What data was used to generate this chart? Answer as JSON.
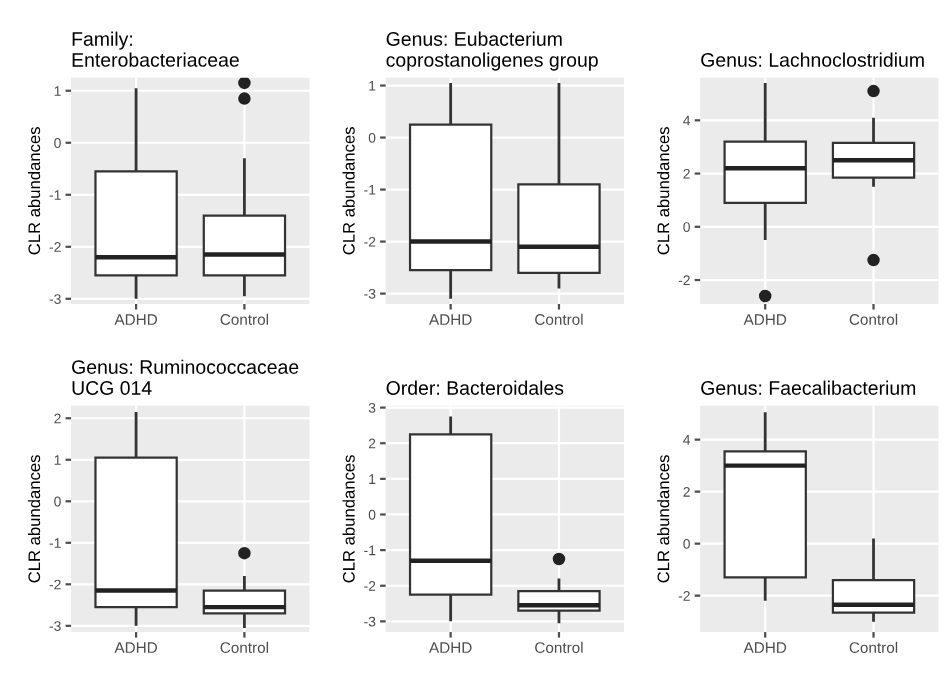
{
  "chart_data": [
    {
      "type": "box",
      "title": "Family:\nEnterobacteriaceae",
      "ylabel": "CLR abundances",
      "categories": [
        "ADHD",
        "Control"
      ],
      "ylim": [
        -3.1,
        1.25
      ],
      "yticks": [
        -3,
        -2,
        -1,
        0,
        1
      ],
      "grid": true,
      "legend": false,
      "boxes": [
        {
          "low": -3.0,
          "q1": -2.55,
          "median": -2.2,
          "q3": -0.55,
          "high": 1.05
        },
        {
          "low": -2.95,
          "q1": -2.55,
          "median": -2.15,
          "q3": -1.4,
          "high": -0.3,
          "outliers": [
            0.85,
            1.15
          ]
        }
      ]
    },
    {
      "type": "box",
      "title": "Genus: Eubacterium\ncoprostanoligenes group",
      "ylabel": "CLR abundances",
      "categories": [
        "ADHD",
        "Control"
      ],
      "ylim": [
        -3.2,
        1.15
      ],
      "yticks": [
        -3,
        -2,
        -1,
        0,
        1
      ],
      "grid": true,
      "legend": false,
      "boxes": [
        {
          "low": -3.1,
          "q1": -2.55,
          "median": -2.0,
          "q3": 0.25,
          "high": 1.05
        },
        {
          "low": -2.9,
          "q1": -2.6,
          "median": -2.1,
          "q3": -0.9,
          "high": 1.05
        }
      ]
    },
    {
      "type": "box",
      "title": "Genus: Lachnoclostridium",
      "ylabel": "CLR abundances",
      "categories": [
        "ADHD",
        "Control"
      ],
      "ylim": [
        -2.9,
        5.6
      ],
      "yticks": [
        -2,
        0,
        2,
        4
      ],
      "grid": true,
      "legend": false,
      "boxes": [
        {
          "low": -0.5,
          "q1": 0.9,
          "median": 2.2,
          "q3": 3.2,
          "high": 5.4,
          "outliers": [
            -2.6
          ]
        },
        {
          "low": 1.5,
          "q1": 1.85,
          "median": 2.5,
          "q3": 3.15,
          "high": 4.1,
          "outliers": [
            5.1,
            -1.25
          ]
        }
      ]
    },
    {
      "type": "box",
      "title": "Genus: Ruminococcaceae\nUCG 014",
      "ylabel": "CLR abundances",
      "categories": [
        "ADHD",
        "Control"
      ],
      "ylim": [
        -3.15,
        2.3
      ],
      "yticks": [
        -3,
        -2,
        -1,
        0,
        1,
        2
      ],
      "grid": true,
      "legend": false,
      "boxes": [
        {
          "low": -3.0,
          "q1": -2.55,
          "median": -2.15,
          "q3": 1.05,
          "high": 2.15
        },
        {
          "low": -3.05,
          "q1": -2.7,
          "median": -2.55,
          "q3": -2.15,
          "high": -1.8,
          "outliers": [
            -1.25
          ]
        }
      ]
    },
    {
      "type": "box",
      "title": "Order: Bacteroidales",
      "ylabel": "CLR abundances",
      "categories": [
        "ADHD",
        "Control"
      ],
      "ylim": [
        -3.3,
        3.05
      ],
      "yticks": [
        -3,
        -2,
        -1,
        0,
        1,
        2,
        3
      ],
      "grid": true,
      "legend": false,
      "boxes": [
        {
          "low": -3.0,
          "q1": -2.25,
          "median": -1.3,
          "q3": 2.25,
          "high": 2.75
        },
        {
          "low": -3.05,
          "q1": -2.7,
          "median": -2.55,
          "q3": -2.15,
          "high": -1.8,
          "outliers": [
            -1.25
          ]
        }
      ]
    },
    {
      "type": "box",
      "title": "Genus: Faecalibacterium",
      "ylabel": "CLR abundances",
      "categories": [
        "ADHD",
        "Control"
      ],
      "ylim": [
        -3.4,
        5.3
      ],
      "yticks": [
        -2,
        0,
        2,
        4
      ],
      "grid": true,
      "legend": false,
      "boxes": [
        {
          "low": -2.2,
          "q1": -1.3,
          "median": 3.0,
          "q3": 3.55,
          "high": 5.05
        },
        {
          "low": -3.0,
          "q1": -2.65,
          "median": -2.35,
          "q3": -1.4,
          "high": 0.2
        }
      ]
    }
  ]
}
